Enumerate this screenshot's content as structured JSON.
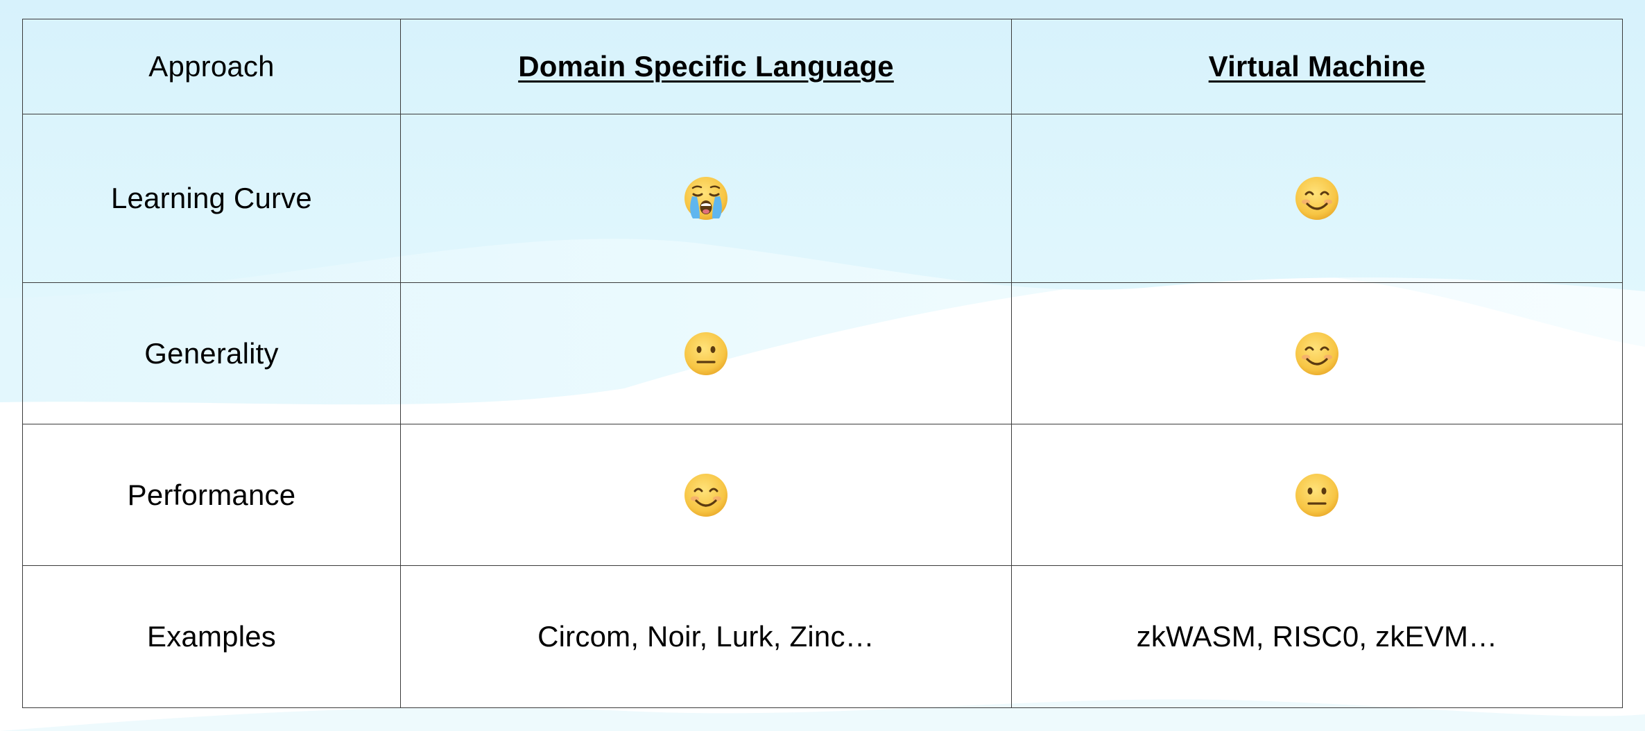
{
  "table": {
    "header": {
      "label": "Approach",
      "columns": [
        "Domain Specific Language",
        "Virtual Machine"
      ]
    },
    "rows": [
      {
        "label": "Learning Curve",
        "cells": [
          {
            "icon": "crying-face-icon"
          },
          {
            "icon": "smiling-face-icon"
          }
        ]
      },
      {
        "label": "Generality",
        "cells": [
          {
            "icon": "neutral-face-icon"
          },
          {
            "icon": "smiling-face-icon"
          }
        ]
      },
      {
        "label": "Performance",
        "cells": [
          {
            "icon": "smiling-face-icon"
          },
          {
            "icon": "neutral-face-icon"
          }
        ]
      },
      {
        "label": "Examples",
        "cells": [
          {
            "text": "Circom, Noir, Lurk, Zinc…"
          },
          {
            "text": "zkWASM, RISC0, zkEVM…"
          }
        ]
      }
    ]
  },
  "colors": {
    "background_top": "#d8f3fc",
    "background_bottom": "#ffffff",
    "border": "#3a3a3a",
    "emoji_face": "#f7c544"
  }
}
